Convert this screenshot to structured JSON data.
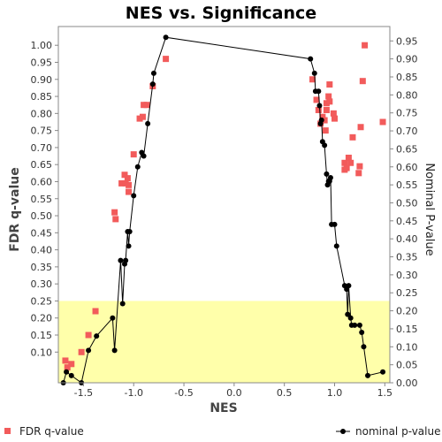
{
  "chart_data": {
    "type": "scatter",
    "title": "NES vs. Significance",
    "xlabel": "NES",
    "ylabel_left": "FDR q-value",
    "ylabel_right": "Nominal P-value",
    "xlim": [
      -1.75,
      1.55
    ],
    "ylim_left": [
      0.01,
      1.055
    ],
    "ylim_right": [
      0.0,
      0.99
    ],
    "x_ticks": [
      "-1.5",
      "-1.0",
      "-0.5",
      "0.0",
      "0.5",
      "1.0",
      "1.5"
    ],
    "y_left_ticks": [
      "0.10",
      "0.15",
      "0.20",
      "0.25",
      "0.30",
      "0.35",
      "0.40",
      "0.45",
      "0.50",
      "0.55",
      "0.60",
      "0.65",
      "0.70",
      "0.75",
      "0.80",
      "0.85",
      "0.90",
      "0.95",
      "1.00"
    ],
    "y_right_ticks": [
      "0.00",
      "0.05",
      "0.10",
      "0.15",
      "0.20",
      "0.25",
      "0.30",
      "0.35",
      "0.40",
      "0.45",
      "0.50",
      "0.55",
      "0.60",
      "0.65",
      "0.70",
      "0.75",
      "0.80",
      "0.85",
      "0.90",
      "0.95"
    ],
    "highlight_band": {
      "axis": "left",
      "from": 0.01,
      "to": 0.25,
      "color": "#ffffaa"
    },
    "grid": false,
    "legend_position": "bottom",
    "series": [
      {
        "name": "FDR q-value",
        "axis": "left",
        "marker": "square",
        "color": "#f25b5b",
        "points": [
          {
            "x": -1.68,
            "y": 0.075
          },
          {
            "x": -1.66,
            "y": 0.055
          },
          {
            "x": -1.62,
            "y": 0.065
          },
          {
            "x": -1.52,
            "y": 0.1
          },
          {
            "x": -1.45,
            "y": 0.15
          },
          {
            "x": -1.38,
            "y": 0.22
          },
          {
            "x": -1.19,
            "y": 0.51
          },
          {
            "x": -1.18,
            "y": 0.49
          },
          {
            "x": -1.12,
            "y": 0.595
          },
          {
            "x": -1.09,
            "y": 0.62
          },
          {
            "x": -1.08,
            "y": 0.595
          },
          {
            "x": -1.06,
            "y": 0.61
          },
          {
            "x": -1.05,
            "y": 0.57
          },
          {
            "x": -1.05,
            "y": 0.59
          },
          {
            "x": -1.0,
            "y": 0.68
          },
          {
            "x": -0.94,
            "y": 0.785
          },
          {
            "x": -0.91,
            "y": 0.79
          },
          {
            "x": -0.9,
            "y": 0.825
          },
          {
            "x": -0.87,
            "y": 0.825
          },
          {
            "x": -0.81,
            "y": 0.88
          },
          {
            "x": -0.68,
            "y": 0.96
          },
          {
            "x": 0.78,
            "y": 0.9
          },
          {
            "x": 0.82,
            "y": 0.84
          },
          {
            "x": 0.84,
            "y": 0.81
          },
          {
            "x": 0.86,
            "y": 0.77
          },
          {
            "x": 0.88,
            "y": 0.79
          },
          {
            "x": 0.9,
            "y": 0.78
          },
          {
            "x": 0.91,
            "y": 0.75
          },
          {
            "x": 0.92,
            "y": 0.81
          },
          {
            "x": 0.92,
            "y": 0.83
          },
          {
            "x": 0.94,
            "y": 0.85
          },
          {
            "x": 0.95,
            "y": 0.885
          },
          {
            "x": 0.95,
            "y": 0.835
          },
          {
            "x": 0.99,
            "y": 0.8
          },
          {
            "x": 1.0,
            "y": 0.785
          },
          {
            "x": 1.1,
            "y": 0.635
          },
          {
            "x": 1.1,
            "y": 0.655
          },
          {
            "x": 1.12,
            "y": 0.64
          },
          {
            "x": 1.14,
            "y": 0.67
          },
          {
            "x": 1.16,
            "y": 0.655
          },
          {
            "x": 1.18,
            "y": 0.73
          },
          {
            "x": 1.24,
            "y": 0.625
          },
          {
            "x": 1.25,
            "y": 0.645
          },
          {
            "x": 1.26,
            "y": 0.76
          },
          {
            "x": 1.28,
            "y": 0.895
          },
          {
            "x": 1.3,
            "y": 1.0
          },
          {
            "x": 1.48,
            "y": 0.775
          }
        ]
      },
      {
        "name": "nominal p-value",
        "axis": "right",
        "marker": "circle-line",
        "color": "#000000",
        "points": [
          {
            "x": -1.7,
            "y": 0.0
          },
          {
            "x": -1.67,
            "y": 0.03
          },
          {
            "x": -1.62,
            "y": 0.02
          },
          {
            "x": -1.52,
            "y": 0.0
          },
          {
            "x": -1.45,
            "y": 0.09
          },
          {
            "x": -1.37,
            "y": 0.13
          },
          {
            "x": -1.21,
            "y": 0.18
          },
          {
            "x": -1.19,
            "y": 0.09
          },
          {
            "x": -1.13,
            "y": 0.34
          },
          {
            "x": -1.11,
            "y": 0.22
          },
          {
            "x": -1.09,
            "y": 0.33
          },
          {
            "x": -1.08,
            "y": 0.34
          },
          {
            "x": -1.06,
            "y": 0.42
          },
          {
            "x": -1.05,
            "y": 0.38
          },
          {
            "x": -1.04,
            "y": 0.42
          },
          {
            "x": -1.0,
            "y": 0.52
          },
          {
            "x": -0.96,
            "y": 0.6
          },
          {
            "x": -0.92,
            "y": 0.64
          },
          {
            "x": -0.9,
            "y": 0.63
          },
          {
            "x": -0.86,
            "y": 0.72
          },
          {
            "x": -0.81,
            "y": 0.83
          },
          {
            "x": -0.8,
            "y": 0.86
          },
          {
            "x": -0.68,
            "y": 0.96
          },
          {
            "x": 0.76,
            "y": 0.9
          },
          {
            "x": 0.8,
            "y": 0.86
          },
          {
            "x": 0.81,
            "y": 0.81
          },
          {
            "x": 0.84,
            "y": 0.81
          },
          {
            "x": 0.85,
            "y": 0.77
          },
          {
            "x": 0.86,
            "y": 0.72
          },
          {
            "x": 0.87,
            "y": 0.73
          },
          {
            "x": 0.88,
            "y": 0.67
          },
          {
            "x": 0.9,
            "y": 0.66
          },
          {
            "x": 0.92,
            "y": 0.58
          },
          {
            "x": 0.93,
            "y": 0.55
          },
          {
            "x": 0.94,
            "y": 0.56
          },
          {
            "x": 0.95,
            "y": 0.56
          },
          {
            "x": 0.96,
            "y": 0.57
          },
          {
            "x": 0.97,
            "y": 0.44
          },
          {
            "x": 1.0,
            "y": 0.44
          },
          {
            "x": 1.02,
            "y": 0.38
          },
          {
            "x": 1.1,
            "y": 0.27
          },
          {
            "x": 1.12,
            "y": 0.26
          },
          {
            "x": 1.13,
            "y": 0.19
          },
          {
            "x": 1.14,
            "y": 0.27
          },
          {
            "x": 1.16,
            "y": 0.18
          },
          {
            "x": 1.17,
            "y": 0.16
          },
          {
            "x": 1.2,
            "y": 0.16
          },
          {
            "x": 1.25,
            "y": 0.16
          },
          {
            "x": 1.27,
            "y": 0.14
          },
          {
            "x": 1.29,
            "y": 0.1
          },
          {
            "x": 1.33,
            "y": 0.02
          },
          {
            "x": 1.48,
            "y": 0.03
          }
        ]
      }
    ]
  }
}
